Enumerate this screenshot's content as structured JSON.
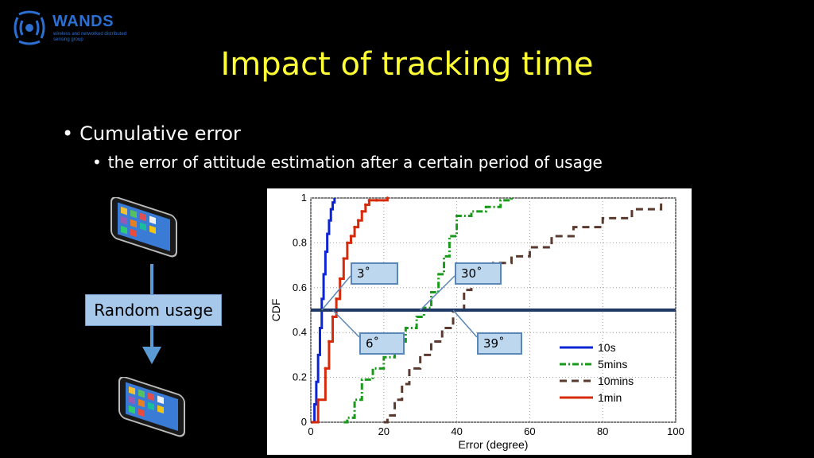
{
  "logo": {
    "name": "WANDS",
    "subtitle": "wireless and networked distributed sensing group"
  },
  "slide": {
    "title": "Impact of tracking time",
    "bullet1": "Cumulative error",
    "bullet2": "the error of attitude estimation after a certain period of usage",
    "diagram_label": "Random usage"
  },
  "chart_data": {
    "type": "line",
    "xlabel": "Error (degree)",
    "ylabel": "CDF",
    "xlim": [
      0,
      100
    ],
    "ylim": [
      0,
      1
    ],
    "xticks": [
      "0",
      "20",
      "40",
      "60",
      "80",
      "100"
    ],
    "yticks": [
      "0",
      "0.2",
      "0.4",
      "0.6",
      "0.8",
      "1"
    ],
    "grid": true,
    "legend_position": "bottom-right",
    "reference_line": {
      "y": 0.5,
      "color": "#1f3864"
    },
    "series": [
      {
        "name": "10s",
        "color": "#0b24d6",
        "style": "solid",
        "x": [
          0,
          1,
          1.5,
          2,
          2.5,
          3,
          3.5,
          4,
          4.5,
          5,
          5.5,
          6,
          6.5
        ],
        "y": [
          0,
          0.08,
          0.18,
          0.3,
          0.42,
          0.55,
          0.66,
          0.76,
          0.84,
          0.9,
          0.95,
          0.98,
          1
        ]
      },
      {
        "name": "5mins",
        "color": "#1a9a1a",
        "style": "dashdot",
        "x": [
          9,
          10,
          12,
          14,
          17,
          20,
          23,
          26,
          29,
          31,
          33,
          35,
          36.5,
          38,
          40,
          44,
          48,
          52,
          55
        ],
        "y": [
          0,
          0.02,
          0.1,
          0.19,
          0.24,
          0.29,
          0.36,
          0.42,
          0.47,
          0.51,
          0.58,
          0.66,
          0.74,
          0.83,
          0.92,
          0.94,
          0.96,
          0.99,
          1
        ]
      },
      {
        "name": "10mins",
        "color": "#5a3a2e",
        "style": "dashed",
        "x": [
          20,
          21,
          23,
          25,
          27,
          30,
          33,
          36,
          39,
          42,
          44,
          47,
          50,
          55,
          60,
          66,
          72,
          80,
          88,
          96
        ],
        "y": [
          0,
          0.03,
          0.1,
          0.17,
          0.24,
          0.3,
          0.36,
          0.42,
          0.5,
          0.59,
          0.65,
          0.68,
          0.71,
          0.74,
          0.78,
          0.83,
          0.87,
          0.91,
          0.95,
          1
        ]
      },
      {
        "name": "1min",
        "color": "#d62a0a",
        "style": "solid-marker",
        "x": [
          0.5,
          2,
          4,
          5,
          6,
          7,
          8,
          9,
          10,
          11,
          12,
          13,
          14,
          15,
          16,
          18,
          21
        ],
        "y": [
          0,
          0.1,
          0.24,
          0.36,
          0.47,
          0.55,
          0.64,
          0.73,
          0.8,
          0.83,
          0.87,
          0.9,
          0.94,
          0.97,
          0.99,
          0.99,
          1
        ]
      }
    ],
    "annotations": [
      {
        "label": "3˚",
        "x": 3,
        "y": 0.5
      },
      {
        "label": "6˚",
        "x": 6,
        "y": 0.5
      },
      {
        "label": "30˚",
        "x": 30,
        "y": 0.5
      },
      {
        "label": "39˚",
        "x": 39,
        "y": 0.5
      }
    ]
  }
}
